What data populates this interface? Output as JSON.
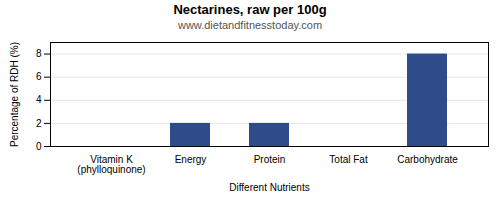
{
  "chart_data": {
    "type": "bar",
    "title": "Nectarines, raw per 100g",
    "subtitle": "www.dietandfitnesstoday.com",
    "xlabel": "Different Nutrients",
    "ylabel": "Percentage of RDH (%)",
    "categories": [
      "Vitamin K (phylloquinone)",
      "Energy",
      "Protein",
      "Total Fat",
      "Carbohydrate"
    ],
    "values": [
      0.0,
      2.0,
      2.0,
      0.0,
      8.0
    ],
    "color": "#2e4b8a",
    "ylim": [
      0,
      9
    ],
    "yticks": [
      0,
      2,
      4,
      6,
      8
    ],
    "grid": true
  }
}
